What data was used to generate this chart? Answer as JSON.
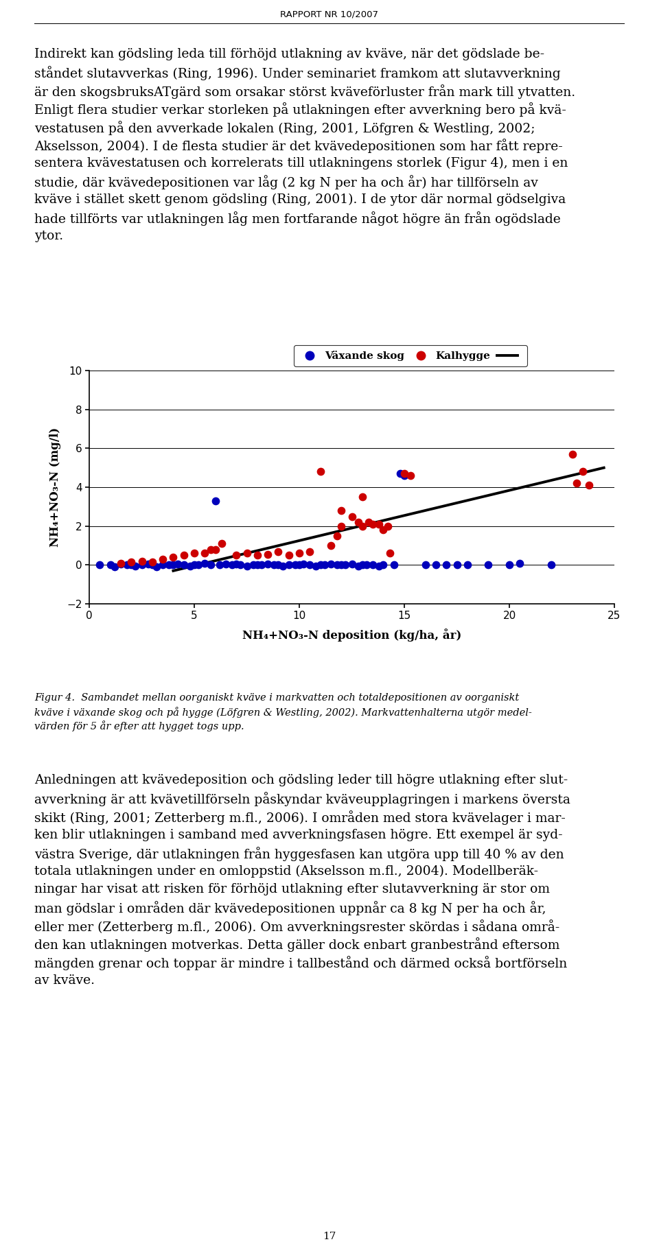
{
  "header_text": "RAPPORT NR 10/2007",
  "page_text": "17",
  "xlabel": "NH₄+NO₃-N deposition (kg/ha, år)",
  "ylabel": "NH₄+NO₃-N (mg/l)",
  "xlim": [
    0,
    25
  ],
  "ylim": [
    -2,
    10
  ],
  "xticks": [
    0,
    5,
    10,
    15,
    20,
    25
  ],
  "yticks": [
    -2,
    0,
    2,
    4,
    6,
    8,
    10
  ],
  "legend_labels": [
    "Växande skog",
    "Kalhygge"
  ],
  "trendline": [
    [
      4.0,
      -0.3
    ],
    [
      24.5,
      5.0
    ]
  ],
  "blue_points": [
    [
      0.5,
      0.0
    ],
    [
      1.0,
      0.0
    ],
    [
      1.2,
      -0.1
    ],
    [
      1.5,
      0.05
    ],
    [
      1.8,
      0.0
    ],
    [
      2.0,
      0.0
    ],
    [
      2.2,
      -0.05
    ],
    [
      2.5,
      0.0
    ],
    [
      2.8,
      0.05
    ],
    [
      3.0,
      0.0
    ],
    [
      3.2,
      -0.1
    ],
    [
      3.5,
      0.0
    ],
    [
      3.8,
      0.0
    ],
    [
      4.0,
      0.0
    ],
    [
      4.2,
      0.05
    ],
    [
      4.5,
      0.0
    ],
    [
      4.8,
      -0.05
    ],
    [
      5.0,
      0.0
    ],
    [
      5.2,
      0.0
    ],
    [
      5.5,
      0.1
    ],
    [
      5.8,
      0.0
    ],
    [
      6.0,
      3.3
    ],
    [
      6.2,
      0.0
    ],
    [
      6.5,
      0.05
    ],
    [
      6.8,
      0.0
    ],
    [
      7.0,
      0.05
    ],
    [
      7.2,
      0.0
    ],
    [
      7.5,
      -0.05
    ],
    [
      7.8,
      0.0
    ],
    [
      8.0,
      0.0
    ],
    [
      8.2,
      0.0
    ],
    [
      8.5,
      0.05
    ],
    [
      8.8,
      0.0
    ],
    [
      9.0,
      0.0
    ],
    [
      9.2,
      -0.05
    ],
    [
      9.5,
      0.0
    ],
    [
      9.8,
      0.0
    ],
    [
      10.0,
      0.0
    ],
    [
      10.2,
      0.05
    ],
    [
      10.5,
      0.0
    ],
    [
      10.8,
      -0.05
    ],
    [
      11.0,
      0.0
    ],
    [
      11.2,
      0.0
    ],
    [
      11.5,
      0.05
    ],
    [
      11.8,
      0.0
    ],
    [
      12.0,
      0.0
    ],
    [
      12.2,
      0.0
    ],
    [
      12.5,
      0.05
    ],
    [
      12.8,
      -0.05
    ],
    [
      13.0,
      0.0
    ],
    [
      13.2,
      0.0
    ],
    [
      13.5,
      0.0
    ],
    [
      13.8,
      -0.05
    ],
    [
      14.0,
      0.0
    ],
    [
      14.5,
      0.0
    ],
    [
      14.8,
      4.7
    ],
    [
      15.0,
      4.6
    ],
    [
      16.0,
      0.0
    ],
    [
      16.5,
      0.0
    ],
    [
      17.0,
      0.0
    ],
    [
      17.5,
      0.0
    ],
    [
      18.0,
      0.0
    ],
    [
      19.0,
      0.0
    ],
    [
      20.0,
      0.0
    ],
    [
      20.5,
      0.1
    ],
    [
      22.0,
      0.0
    ]
  ],
  "red_points": [
    [
      1.5,
      0.1
    ],
    [
      2.0,
      0.15
    ],
    [
      2.5,
      0.2
    ],
    [
      3.0,
      0.15
    ],
    [
      3.5,
      0.3
    ],
    [
      4.0,
      0.4
    ],
    [
      4.5,
      0.5
    ],
    [
      5.0,
      0.6
    ],
    [
      5.5,
      0.6
    ],
    [
      5.8,
      0.8
    ],
    [
      6.0,
      0.8
    ],
    [
      6.3,
      1.1
    ],
    [
      7.0,
      0.5
    ],
    [
      7.5,
      0.6
    ],
    [
      8.0,
      0.5
    ],
    [
      8.5,
      0.55
    ],
    [
      9.0,
      0.7
    ],
    [
      9.5,
      0.5
    ],
    [
      10.0,
      0.6
    ],
    [
      10.5,
      0.7
    ],
    [
      11.0,
      4.8
    ],
    [
      11.5,
      1.0
    ],
    [
      11.8,
      1.5
    ],
    [
      12.0,
      2.8
    ],
    [
      12.0,
      2.0
    ],
    [
      12.5,
      2.5
    ],
    [
      12.8,
      2.2
    ],
    [
      13.0,
      2.0
    ],
    [
      13.0,
      3.5
    ],
    [
      13.3,
      2.2
    ],
    [
      13.5,
      2.1
    ],
    [
      13.8,
      2.1
    ],
    [
      14.0,
      1.8
    ],
    [
      14.2,
      2.0
    ],
    [
      14.3,
      0.6
    ],
    [
      15.0,
      4.7
    ],
    [
      15.3,
      4.6
    ],
    [
      23.0,
      5.7
    ],
    [
      23.2,
      4.2
    ],
    [
      23.5,
      4.8
    ],
    [
      23.8,
      4.1
    ]
  ],
  "caption": "Figur 4.  Sambandet mellan oorganiskt kväve i markvatten och totaldepositionen av oorganiskt\nkväve i växande skog och på hygge (Löfgren & Westling, 2002). Markvattenhalterna utgör medel-\nvärden för 5 år efter att hygget togs upp.",
  "top_paragraph": "Indirekt kan gödsling leda till förhöjd utlakning av kväve, när det gödslade beståndet slutavverkas (Ring, 1996). Under seminariet framkom att slutavverkning är den skogsbruksATgärd som orsakar störst kväveförluster från mark till ytvatten. Enligt flera studier verkar storleken på utlakningen efter avverkning bero på kvävestatusen på den avverkade lokalen (Ring, 2001, Löfgren & Westling, 2002; Akselsson, 2004). I de flesta studier är det kvävedepositionen som har fått representera kvävestatusen och korrelerats till utlakningens storlek (Figur 4), men i en studie, där kvävedepositionen var låg (2 kg N per ha och år) har tillförseln av kväve i stället skett genom gödsling (Ring, 2001). I de ytor där normal gödselgiva hade tillförts var utlakningen låg men fortfarande något högre än från ogödslade ytor.",
  "bottom_paragraph": "Anledningen att kvävedeposition och gödsling leder till högre utlakning efter slutavverkning är att kvävetillförseln påskyndar kväveupplagringen i markens översta skikt (Ring, 2001; Zetterberg m.fl., 2006). I områden med stora kvävelager i marken blir utlakningen i samband med avverkningsfasen högre. Ett exempel är sydvästra Sverige, där utlakningen från hyggesfasen kan utgöra upp till 40 % av den totala utlakningen under en omloppstid (Akselsson m.fl., 2004). Modellberäkningar har visat att risken för förhöjd utlakning efter slutavverkning är stor om man gödslar i områden där kvävedepositionen uppnår ca 8 kg N per ha och år, eller mer (Zetterberg m.fl., 2006). Om avverkningsrester skördas i sådana områden kan utlakningen motverkas. Detta gäller dock enbart granbestrånd eftersom mängden grenar och toppar är mindre i tallbestånd och därmed också bortförseln av kväve."
}
